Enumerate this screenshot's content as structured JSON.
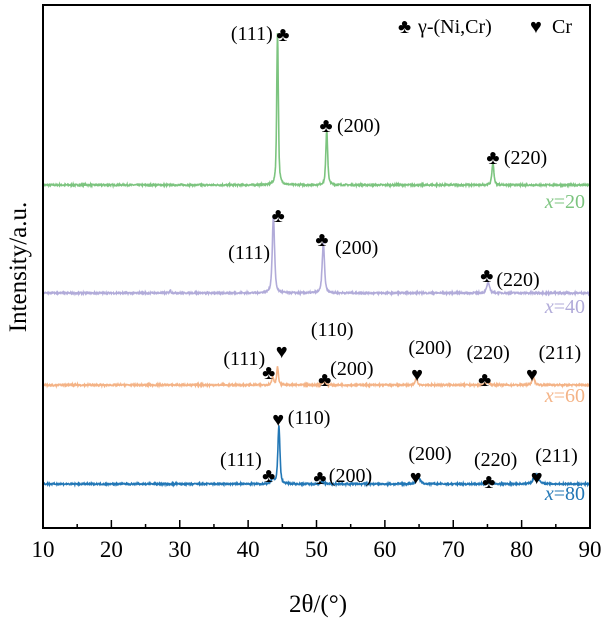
{
  "chart_data": {
    "type": "line",
    "title": "",
    "xlabel": "2θ/(°)",
    "ylabel": "Intensity/a.u.",
    "xlim": [
      10,
      90
    ],
    "ylim": [
      0,
      523
    ],
    "xticks": [
      10,
      20,
      30,
      40,
      50,
      60,
      70,
      80,
      90
    ],
    "xtick_labels": [
      "10",
      "20",
      "30",
      "40",
      "50",
      "60",
      "70",
      "80",
      "90"
    ],
    "grid": false,
    "legend": {
      "placement": "top-right",
      "entries": [
        {
          "symbol": "♣",
          "label": "γ-(Ni,Cr)",
          "symbol_name": "club"
        },
        {
          "symbol": "♥",
          "label": "Cr",
          "symbol_name": "heart"
        }
      ]
    },
    "series": [
      {
        "name": "x=20",
        "label_var": "x",
        "label_val": "=20",
        "color": "#7cc47f",
        "baseline": 343,
        "peaks": [
          {
            "pos": 44.3,
            "height": 152,
            "fwhm": 0.28
          },
          {
            "pos": 51.5,
            "height": 55,
            "fwhm": 0.32
          },
          {
            "pos": 75.8,
            "height": 22,
            "fwhm": 0.35
          }
        ]
      },
      {
        "name": "x=40",
        "label_var": "x",
        "label_val": "=40",
        "color": "#b1abd9",
        "baseline": 235,
        "peaks": [
          {
            "pos": 43.7,
            "height": 76,
            "fwhm": 0.4
          },
          {
            "pos": 51.0,
            "height": 50,
            "fwhm": 0.4
          },
          {
            "pos": 75.1,
            "height": 10,
            "fwhm": 0.5
          },
          {
            "pos": 28.6,
            "height": 3,
            "fwhm": 0.2
          }
        ]
      },
      {
        "name": "x=60",
        "label_var": "x",
        "label_val": "=60",
        "color": "#f4b386",
        "baseline": 143,
        "peaks": [
          {
            "pos": 43.6,
            "height": 8,
            "fwhm": 0.35
          },
          {
            "pos": 44.3,
            "height": 18,
            "fwhm": 0.3
          },
          {
            "pos": 51.0,
            "height": 3,
            "fwhm": 0.6
          },
          {
            "pos": 64.6,
            "height": 7,
            "fwhm": 0.35
          },
          {
            "pos": 75.0,
            "height": 3,
            "fwhm": 0.6
          },
          {
            "pos": 81.7,
            "height": 8,
            "fwhm": 0.45
          }
        ]
      },
      {
        "name": "x=80",
        "label_var": "x",
        "label_val": "=80",
        "color": "#2277b6",
        "baseline": 44,
        "peaks": [
          {
            "pos": 43.6,
            "height": 6,
            "fwhm": 0.45
          },
          {
            "pos": 44.5,
            "height": 59,
            "fwhm": 0.35
          },
          {
            "pos": 50.9,
            "height": 2,
            "fwhm": 0.7
          },
          {
            "pos": 64.9,
            "height": 6,
            "fwhm": 0.7
          },
          {
            "pos": 75.0,
            "height": 2,
            "fwhm": 0.8
          },
          {
            "pos": 82.1,
            "height": 10,
            "fwhm": 0.8
          }
        ]
      }
    ],
    "annotations": [
      {
        "text": "(111)",
        "x": 43.6,
        "y": 495,
        "anchor": "end"
      },
      {
        "text": "♣",
        "x": 45.1,
        "y": 494,
        "anchor": "middle"
      },
      {
        "text": "♣",
        "x": 51.4,
        "y": 403,
        "anchor": "middle"
      },
      {
        "text": "(200)",
        "x": 53.0,
        "y": 403,
        "anchor": "start"
      },
      {
        "text": "♣",
        "x": 75.8,
        "y": 371,
        "anchor": "middle"
      },
      {
        "text": "(220)",
        "x": 77.4,
        "y": 371,
        "anchor": "start"
      },
      {
        "text": "(111)",
        "x": 43.2,
        "y": 276,
        "anchor": "end"
      },
      {
        "text": "♣",
        "x": 44.4,
        "y": 313,
        "anchor": "middle"
      },
      {
        "text": "♣",
        "x": 50.8,
        "y": 289,
        "anchor": "middle"
      },
      {
        "text": "(200)",
        "x": 52.7,
        "y": 281,
        "anchor": "start"
      },
      {
        "text": "♣",
        "x": 74.9,
        "y": 253,
        "anchor": "middle"
      },
      {
        "text": "(220)",
        "x": 76.3,
        "y": 249,
        "anchor": "start"
      },
      {
        "text": "(111)",
        "x": 42.5,
        "y": 170,
        "anchor": "end"
      },
      {
        "text": "♣",
        "x": 43.0,
        "y": 156,
        "anchor": "middle"
      },
      {
        "text": "♥",
        "x": 44.9,
        "y": 177,
        "anchor": "middle"
      },
      {
        "text": "(110)",
        "x": 52.3,
        "y": 199,
        "anchor": "middle"
      },
      {
        "text": "♣",
        "x": 51.2,
        "y": 149,
        "anchor": "middle"
      },
      {
        "text": "(200)",
        "x": 52.0,
        "y": 160,
        "anchor": "start"
      },
      {
        "text": "(200)",
        "x": 66.6,
        "y": 181,
        "anchor": "middle"
      },
      {
        "text": "♥",
        "x": 64.7,
        "y": 154,
        "anchor": "middle"
      },
      {
        "text": "(220)",
        "x": 75.1,
        "y": 176,
        "anchor": "middle"
      },
      {
        "text": "♣",
        "x": 74.6,
        "y": 149,
        "anchor": "middle"
      },
      {
        "text": "(211)",
        "x": 85.6,
        "y": 176,
        "anchor": "middle"
      },
      {
        "text": "♥",
        "x": 81.5,
        "y": 154,
        "anchor": "middle"
      },
      {
        "text": "♥",
        "x": 44.4,
        "y": 109,
        "anchor": "middle"
      },
      {
        "text": "(110)",
        "x": 45.8,
        "y": 111,
        "anchor": "start"
      },
      {
        "text": "(111)",
        "x": 42.0,
        "y": 69,
        "anchor": "end"
      },
      {
        "text": "♣",
        "x": 43.0,
        "y": 53,
        "anchor": "middle"
      },
      {
        "text": "♣",
        "x": 50.5,
        "y": 51,
        "anchor": "middle"
      },
      {
        "text": "(200)",
        "x": 51.8,
        "y": 53,
        "anchor": "start"
      },
      {
        "text": "(200)",
        "x": 66.6,
        "y": 75,
        "anchor": "middle"
      },
      {
        "text": "♥",
        "x": 64.5,
        "y": 51,
        "anchor": "middle"
      },
      {
        "text": "(220)",
        "x": 76.2,
        "y": 69,
        "anchor": "middle"
      },
      {
        "text": "♣",
        "x": 75.2,
        "y": 47,
        "anchor": "middle"
      },
      {
        "text": "(211)",
        "x": 85.1,
        "y": 73,
        "anchor": "middle"
      },
      {
        "text": "♥",
        "x": 82.2,
        "y": 51,
        "anchor": "middle"
      }
    ]
  }
}
